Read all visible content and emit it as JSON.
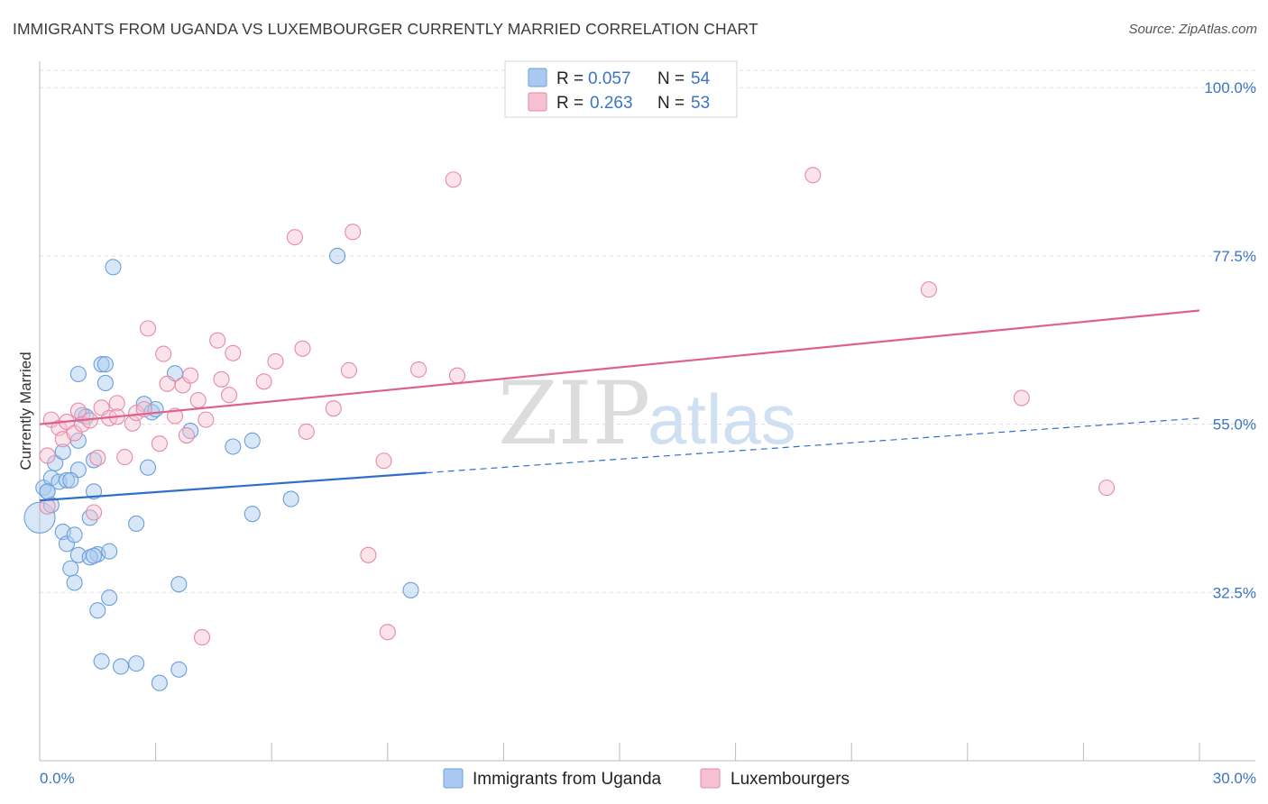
{
  "title": "IMMIGRANTS FROM UGANDA VS LUXEMBOURGER CURRENTLY MARRIED CORRELATION CHART",
  "source": "Source: ZipAtlas.com",
  "watermark": {
    "zip": "ZIP",
    "atlas": "atlas"
  },
  "colors": {
    "uganda_fill": "#a9c9f0",
    "uganda_stroke": "#6a9fd8",
    "uganda_line": "#2f6fcc",
    "lux_fill": "#f7c0d0",
    "lux_stroke": "#e68aa8",
    "lux_line": "#e0608c",
    "tick_text": "#3b74c4",
    "grid": "#dddddd"
  },
  "legend": {
    "rows": [
      {
        "r_label": "R =",
        "r_value": "0.057",
        "n_label": "N =",
        "n_value": "54"
      },
      {
        "r_label": "R =",
        "r_value": "0.263",
        "n_label": "N =",
        "n_value": "53"
      }
    ]
  },
  "bottom_legend": [
    "Immigrants from Uganda",
    "Luxembourgers"
  ],
  "chart_data": {
    "type": "scatter",
    "title": "IMMIGRANTS FROM UGANDA VS LUXEMBOURGER CURRENTLY MARRIED CORRELATION CHART",
    "xlabel": "",
    "ylabel": "Currently Married",
    "xlim": [
      0,
      30
    ],
    "ylim": [
      10,
      104
    ],
    "x_tick_labels": [
      "0.0%",
      "30.0%"
    ],
    "y_ticks": [
      32.5,
      55.0,
      77.5,
      100.0
    ],
    "y_tick_labels": [
      "32.5%",
      "55.0%",
      "77.5%",
      "100.0%"
    ],
    "grid": true,
    "legend_position": "top-center",
    "series": [
      {
        "name": "Immigrants from Uganda",
        "r": 0.057,
        "n": 54,
        "trend": {
          "x0": 0,
          "y0": 44.8,
          "x1": 10,
          "y1": 48.5,
          "dashed_to_x": 30,
          "dashed_to_y": 55.8
        },
        "points": [
          [
            0.0,
            42.5
          ],
          [
            0.1,
            46.5
          ],
          [
            0.2,
            46.0
          ],
          [
            0.3,
            44.2
          ],
          [
            0.3,
            47.8
          ],
          [
            0.5,
            47.3
          ],
          [
            0.4,
            49.8
          ],
          [
            0.6,
            51.3
          ],
          [
            0.7,
            47.5
          ],
          [
            0.6,
            40.6
          ],
          [
            0.7,
            39.0
          ],
          [
            0.8,
            35.7
          ],
          [
            0.9,
            40.2
          ],
          [
            1.0,
            48.9
          ],
          [
            1.0,
            37.5
          ],
          [
            1.0,
            61.7
          ],
          [
            1.0,
            52.8
          ],
          [
            1.1,
            56.2
          ],
          [
            1.3,
            42.5
          ],
          [
            1.4,
            46.0
          ],
          [
            1.4,
            50.2
          ],
          [
            1.5,
            30.1
          ],
          [
            1.5,
            37.6
          ],
          [
            1.6,
            63.0
          ],
          [
            1.7,
            60.5
          ],
          [
            1.7,
            63.0
          ],
          [
            1.8,
            31.8
          ],
          [
            1.8,
            38.0
          ],
          [
            1.9,
            76.0
          ],
          [
            1.6,
            23.3
          ],
          [
            2.1,
            22.6
          ],
          [
            2.5,
            23.0
          ],
          [
            2.5,
            41.7
          ],
          [
            2.7,
            57.7
          ],
          [
            2.8,
            49.2
          ],
          [
            2.9,
            56.6
          ],
          [
            3.1,
            20.4
          ],
          [
            3.5,
            61.8
          ],
          [
            3.6,
            33.6
          ],
          [
            3.9,
            54.1
          ],
          [
            3.6,
            22.2
          ],
          [
            5.0,
            52.0
          ],
          [
            5.5,
            52.8
          ],
          [
            5.5,
            43.0
          ],
          [
            6.5,
            45.0
          ],
          [
            7.7,
            77.5
          ],
          [
            9.6,
            32.8
          ],
          [
            0.9,
            33.8
          ],
          [
            1.3,
            37.2
          ],
          [
            1.4,
            37.4
          ],
          [
            0.2,
            46.0
          ],
          [
            0.8,
            47.5
          ],
          [
            1.2,
            56.0
          ],
          [
            3.0,
            57.0
          ]
        ]
      },
      {
        "name": "Luxembourgers",
        "r": 0.263,
        "n": 53,
        "trend": {
          "x0": 0,
          "y0": 55.0,
          "x1": 30,
          "y1": 70.2
        },
        "points": [
          [
            0.2,
            44.0
          ],
          [
            0.2,
            50.8
          ],
          [
            0.3,
            55.6
          ],
          [
            0.5,
            54.5
          ],
          [
            0.6,
            53.0
          ],
          [
            0.7,
            55.3
          ],
          [
            0.9,
            53.8
          ],
          [
            1.0,
            56.8
          ],
          [
            1.1,
            55.0
          ],
          [
            1.3,
            55.5
          ],
          [
            1.4,
            43.2
          ],
          [
            1.5,
            50.5
          ],
          [
            1.6,
            57.2
          ],
          [
            1.8,
            55.8
          ],
          [
            2.0,
            57.8
          ],
          [
            2.0,
            56.0
          ],
          [
            2.2,
            50.6
          ],
          [
            2.4,
            55.1
          ],
          [
            2.5,
            56.5
          ],
          [
            2.7,
            57.0
          ],
          [
            2.8,
            67.8
          ],
          [
            3.1,
            52.4
          ],
          [
            3.2,
            64.4
          ],
          [
            3.3,
            60.4
          ],
          [
            3.5,
            56.1
          ],
          [
            3.7,
            60.2
          ],
          [
            3.8,
            53.5
          ],
          [
            3.9,
            61.5
          ],
          [
            4.1,
            58.2
          ],
          [
            4.2,
            26.5
          ],
          [
            4.3,
            55.6
          ],
          [
            4.6,
            66.2
          ],
          [
            4.7,
            61.0
          ],
          [
            4.9,
            58.9
          ],
          [
            5.0,
            64.5
          ],
          [
            5.8,
            60.7
          ],
          [
            6.1,
            63.4
          ],
          [
            6.6,
            80.0
          ],
          [
            6.8,
            65.1
          ],
          [
            6.9,
            54.0
          ],
          [
            7.6,
            57.1
          ],
          [
            8.0,
            62.2
          ],
          [
            8.1,
            80.7
          ],
          [
            8.5,
            37.5
          ],
          [
            8.9,
            50.1
          ],
          [
            9.0,
            27.2
          ],
          [
            9.8,
            62.3
          ],
          [
            10.8,
            61.5
          ],
          [
            10.7,
            87.7
          ],
          [
            20.0,
            88.3
          ],
          [
            23.0,
            73.0
          ],
          [
            25.4,
            58.5
          ],
          [
            27.6,
            46.5
          ]
        ]
      }
    ]
  }
}
